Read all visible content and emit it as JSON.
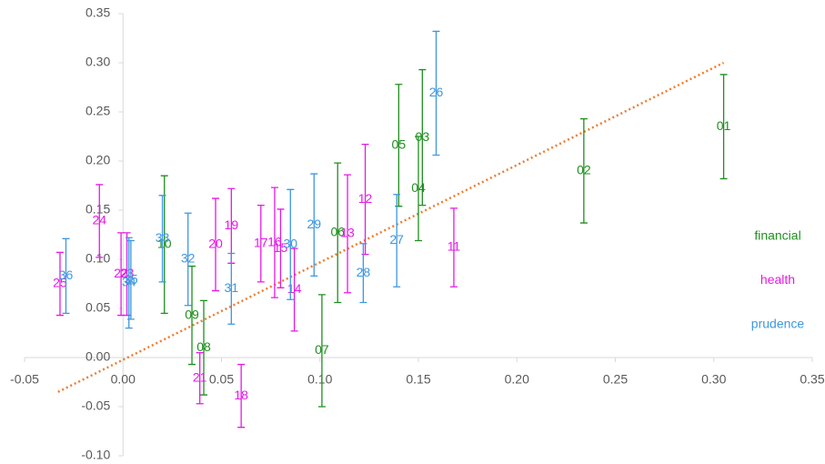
{
  "chart_data": {
    "type": "scatter",
    "xlim": [
      -0.05,
      0.35
    ],
    "xticks": [
      {
        "value": -0.05,
        "label": "-0.05"
      },
      {
        "value": 0,
        "label": "0.00"
      },
      {
        "value": 0.05,
        "label": "0.05"
      },
      {
        "value": 0.1,
        "label": "0.10"
      },
      {
        "value": 0.15,
        "label": "0.15"
      },
      {
        "value": 0.2,
        "label": "0.20"
      },
      {
        "value": 0.25,
        "label": "0.25"
      },
      {
        "value": 0.3,
        "label": "0.30"
      },
      {
        "value": 0.35,
        "label": "0.35"
      }
    ],
    "ylim": [
      -0.1,
      0.35
    ],
    "yticks": [
      {
        "value": -0.1,
        "label": "-0.10"
      },
      {
        "value": -0.05,
        "label": "-0.05"
      },
      {
        "value": 0,
        "label": "0.00"
      },
      {
        "value": 0.05,
        "label": "0.05"
      },
      {
        "value": 0.1,
        "label": "0.10"
      },
      {
        "value": 0.15,
        "label": "0.15"
      },
      {
        "value": 0.2,
        "label": "0.20"
      },
      {
        "value": 0.25,
        "label": "0.25"
      },
      {
        "value": 0.3,
        "label": "0.30"
      },
      {
        "value": 0.35,
        "label": "0.35"
      }
    ],
    "legend": "right",
    "series": [
      {
        "name": "financial",
        "color": "#1f8f1f",
        "labels": [
          "01",
          "02",
          "03",
          "04",
          "05",
          "06",
          "07",
          "08",
          "09",
          "10"
        ],
        "x": [
          0.305,
          0.234,
          0.152,
          0.15,
          0.14,
          0.109,
          0.101,
          0.041,
          0.035,
          0.021
        ],
        "values": [
          0.235,
          0.19,
          0.224,
          0.172,
          0.216,
          0.127,
          0.007,
          0.01,
          0.043,
          0.115
        ],
        "errors": [
          0.053,
          0.053,
          0.069,
          0.053,
          0.062,
          0.071,
          0.057,
          0.048,
          0.05,
          0.07
        ]
      },
      {
        "name": "health",
        "color": "#e619e6",
        "labels": [
          "11",
          "12",
          "13",
          "14",
          "15",
          "16",
          "17",
          "18",
          "19",
          "20",
          "21",
          "22",
          "23",
          "24",
          "25"
        ],
        "x": [
          0.168,
          0.123,
          0.114,
          0.087,
          0.08,
          0.077,
          0.07,
          0.06,
          0.055,
          0.047,
          0.039,
          -0.001,
          0.002,
          -0.012,
          -0.032
        ],
        "values": [
          0.112,
          0.161,
          0.126,
          0.069,
          0.111,
          0.117,
          0.116,
          -0.039,
          0.134,
          0.115,
          -0.021,
          0.085,
          0.085,
          0.139,
          0.075
        ],
        "errors": [
          0.04,
          0.056,
          0.06,
          0.042,
          0.04,
          0.056,
          0.039,
          0.032,
          0.038,
          0.047,
          0.026,
          0.042,
          0.042,
          0.037,
          0.032
        ]
      },
      {
        "name": "prudence",
        "color": "#3d97e0",
        "labels": [
          "26",
          "27",
          "28",
          "29",
          "30",
          "31",
          "32",
          "33",
          "34",
          "35",
          "36"
        ],
        "x": [
          0.159,
          0.139,
          0.122,
          0.097,
          0.085,
          0.055,
          0.033,
          0.02,
          0.003,
          0.004,
          -0.029
        ],
        "values": [
          0.269,
          0.119,
          0.086,
          0.135,
          0.115,
          0.07,
          0.1,
          0.121,
          0.076,
          0.079,
          0.083
        ],
        "errors": [
          0.063,
          0.047,
          0.03,
          0.052,
          0.056,
          0.036,
          0.047,
          0.044,
          0.046,
          0.04,
          0.038
        ]
      }
    ],
    "trendline": {
      "color": "#ed7d31",
      "x": [
        -0.033,
        0.305
      ],
      "y": [
        -0.035,
        0.3
      ]
    }
  }
}
